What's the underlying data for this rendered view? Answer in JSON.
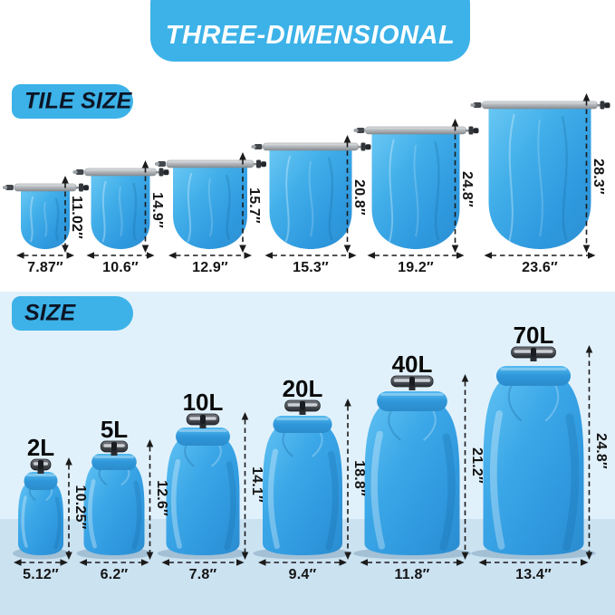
{
  "banner": {
    "title": "THREE-DIMENSIONAL"
  },
  "tile_section": {
    "label": "TILE SIZE",
    "bags": [
      {
        "height": "11.02″",
        "width": "7.87″"
      },
      {
        "height": "14.9″",
        "width": "10.6″"
      },
      {
        "height": "15.7″",
        "width": "12.9″"
      },
      {
        "height": "20.8″",
        "width": "15.3″"
      },
      {
        "height": "24.8″",
        "width": "19.2″"
      },
      {
        "height": "28.3″",
        "width": "23.6″"
      }
    ]
  },
  "size_section": {
    "label": "SIZE",
    "bags": [
      {
        "volume": "2L",
        "height": "10.25″",
        "width": "5.12″"
      },
      {
        "volume": "5L",
        "height": "12.6″",
        "width": "6.2″"
      },
      {
        "volume": "10L",
        "height": "14.1″",
        "width": "7.8″"
      },
      {
        "volume": "20L",
        "height": "18.8″",
        "width": "9.4″"
      },
      {
        "volume": "40L",
        "height": "21.2″",
        "width": "11.8″"
      },
      {
        "volume": "70L",
        "height": "24.8″",
        "width": "13.4″"
      }
    ]
  },
  "colors": {
    "accent_blue": "#3cb2e8",
    "bag_blue": "#3aa8e6",
    "strip_gray": "#b3b7bb",
    "section_bg": "#e1f1fb",
    "floor_bg": "#cbe2f1",
    "text_dark": "#141414"
  }
}
